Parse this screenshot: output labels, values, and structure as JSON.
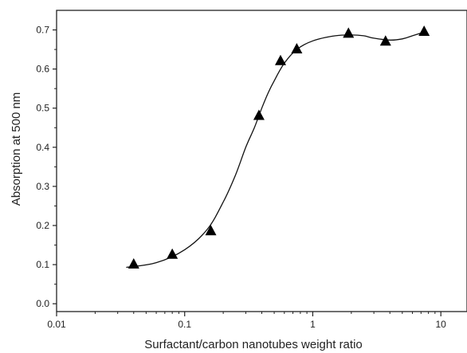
{
  "chart_data": {
    "type": "scatter",
    "title": "",
    "xlabel": "Surfactant/carbon nanotubes weight ratio",
    "ylabel": "Absorption at 500 nm",
    "xscale": "log",
    "xlim": [
      0.01,
      16
    ],
    "ylim": [
      -0.02,
      0.75
    ],
    "x_ticks": [
      0.01,
      0.1,
      1,
      10
    ],
    "x_tick_labels": [
      "0.01",
      "0.1",
      "1",
      "10"
    ],
    "y_ticks": [
      0.0,
      0.1,
      0.2,
      0.3,
      0.4,
      0.5,
      0.6,
      0.7
    ],
    "y_tick_labels": [
      "0.0",
      "0.1",
      "0.2",
      "0.3",
      "0.4",
      "0.5",
      "0.6",
      "0.7"
    ],
    "grid": false,
    "marker": "filled-triangle",
    "fit_line": "smooth curve",
    "series": [
      {
        "x": [
          0.04,
          0.08,
          0.16,
          0.38,
          0.56,
          0.75,
          1.9,
          3.7,
          7.4
        ],
        "y": [
          0.1,
          0.125,
          0.185,
          0.48,
          0.62,
          0.65,
          0.69,
          0.67,
          0.695
        ]
      }
    ],
    "curve": {
      "x": [
        0.035,
        0.06,
        0.1,
        0.15,
        0.2,
        0.25,
        0.3,
        0.35,
        0.4,
        0.45,
        0.5,
        0.6,
        0.75,
        1.0,
        1.5,
        2.0,
        2.5,
        3.0,
        4.0,
        5.0,
        6.0,
        7.5
      ],
      "y": [
        0.093,
        0.105,
        0.138,
        0.19,
        0.26,
        0.33,
        0.4,
        0.45,
        0.5,
        0.54,
        0.57,
        0.615,
        0.65,
        0.672,
        0.685,
        0.687,
        0.685,
        0.679,
        0.674,
        0.677,
        0.685,
        0.695
      ]
    }
  }
}
